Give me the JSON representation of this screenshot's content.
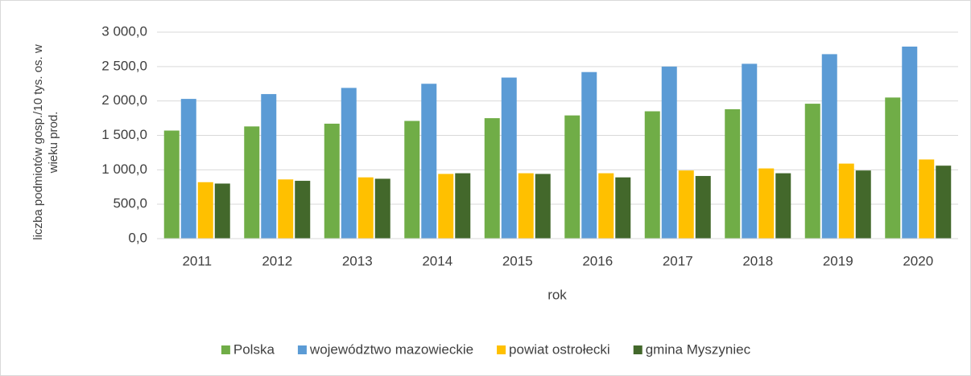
{
  "chart_data": {
    "type": "bar",
    "y_label": "liczba podmiotów gosp./10 tys. os. w wieku prod.",
    "x_label": "rok",
    "categories": [
      "2011",
      "2012",
      "2013",
      "2014",
      "2015",
      "2016",
      "2017",
      "2018",
      "2019",
      "2020"
    ],
    "series": [
      {
        "name": "Polska",
        "color": "#70ad47",
        "values": [
          1570,
          1630,
          1670,
          1710,
          1750,
          1790,
          1850,
          1880,
          1960,
          2050
        ]
      },
      {
        "name": "województwo mazowieckie",
        "color": "#5b9bd5",
        "values": [
          2030,
          2100,
          2190,
          2250,
          2340,
          2420,
          2500,
          2540,
          2680,
          2790
        ]
      },
      {
        "name": "powiat ostrołecki",
        "color": "#ffc000",
        "values": [
          820,
          860,
          890,
          940,
          950,
          950,
          990,
          1020,
          1090,
          1150
        ]
      },
      {
        "name": "gmina Myszyniec",
        "color": "#43682b",
        "values": [
          800,
          840,
          870,
          950,
          940,
          890,
          910,
          950,
          990,
          1060
        ]
      }
    ],
    "ylim": [
      0,
      3000
    ],
    "yticks": [
      {
        "value": 0,
        "label": "0,0"
      },
      {
        "value": 500,
        "label": "500,0"
      },
      {
        "value": 1000,
        "label": "1 000,0"
      },
      {
        "value": 1500,
        "label": "1 500,0"
      },
      {
        "value": 2000,
        "label": "2 000,0"
      },
      {
        "value": 2500,
        "label": "2 500,0"
      },
      {
        "value": 3000,
        "label": "3 000,0"
      }
    ],
    "grid": true,
    "legend": "bottom"
  }
}
